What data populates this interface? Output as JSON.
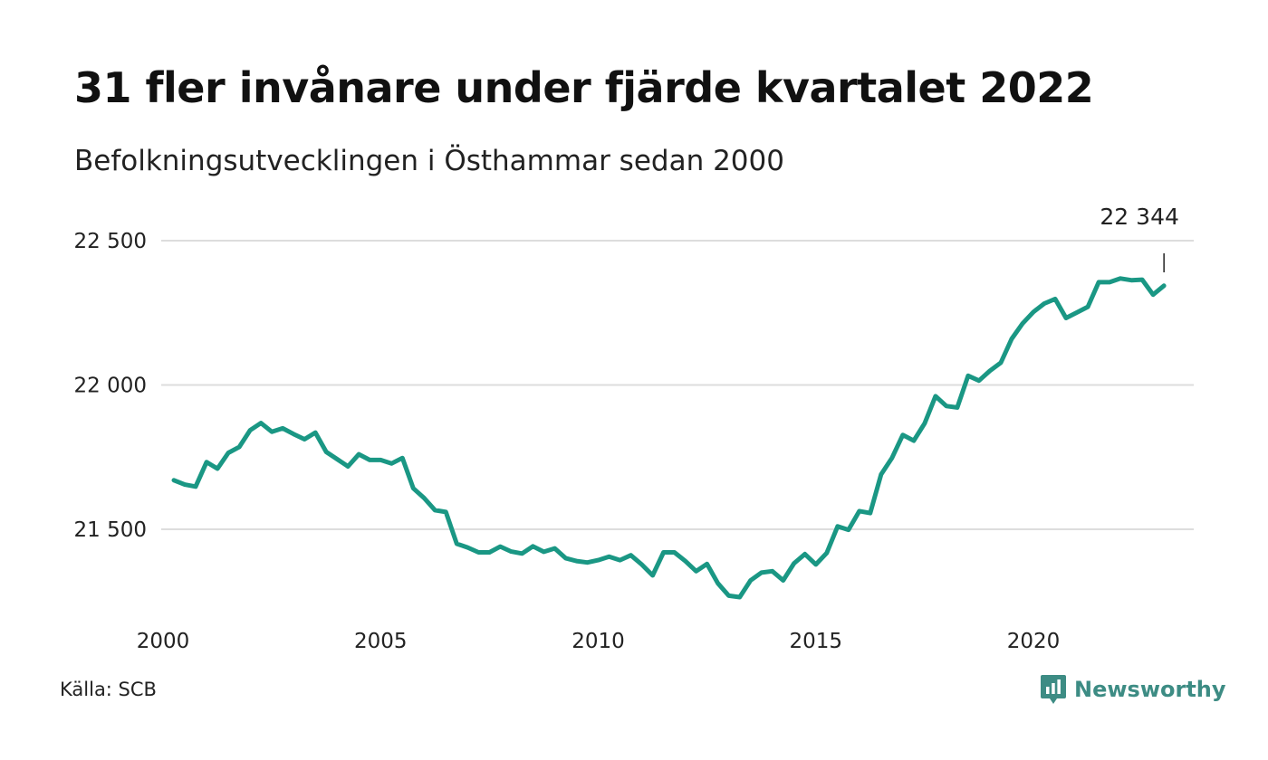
{
  "title": "31 fler invånare under fjärde kvartalet 2022",
  "subtitle": "Befolkningsutvecklingen i Östhammar sedan 2000",
  "source": "Källa: SCB",
  "brand": "Newsworthy",
  "colors": {
    "line": "#1a9784",
    "grid": "#dddddd",
    "brand": "#3d8c84"
  },
  "chart_data": {
    "type": "line",
    "title": "31 fler invånare under fjärde kvartalet 2022",
    "subtitle": "Befolkningsutvecklingen i Östhammar sedan 2000",
    "xlabel": "",
    "ylabel": "",
    "xlim": [
      2000,
      2023.5
    ],
    "ylim": [
      21250,
      22500
    ],
    "grid": true,
    "x_ticks": [
      2000,
      2005,
      2010,
      2015,
      2020
    ],
    "y_ticks": [
      21500,
      22000,
      22500
    ],
    "y_tick_labels": [
      "21 500",
      "22 000",
      "22 500"
    ],
    "end_label": "22 344",
    "x": [
      2000.25,
      2000.5,
      2000.75,
      2001.0,
      2001.25,
      2001.5,
      2001.75,
      2002.0,
      2002.25,
      2002.5,
      2002.75,
      2003.0,
      2003.25,
      2003.5,
      2003.75,
      2004.0,
      2004.25,
      2004.5,
      2004.75,
      2005.0,
      2005.25,
      2005.5,
      2005.75,
      2006.0,
      2006.25,
      2006.5,
      2006.75,
      2007.0,
      2007.25,
      2007.5,
      2007.75,
      2008.0,
      2008.25,
      2008.5,
      2008.75,
      2009.0,
      2009.25,
      2009.5,
      2009.75,
      2010.0,
      2010.25,
      2010.5,
      2010.75,
      2011.0,
      2011.25,
      2011.5,
      2011.75,
      2012.0,
      2012.25,
      2012.5,
      2012.75,
      2013.0,
      2013.25,
      2013.5,
      2013.75,
      2014.0,
      2014.25,
      2014.5,
      2014.75,
      2015.0,
      2015.25,
      2015.5,
      2015.75,
      2016.0,
      2016.25,
      2016.5,
      2016.75,
      2017.0,
      2017.25,
      2017.5,
      2017.75,
      2018.0,
      2018.25,
      2018.5,
      2018.75,
      2019.0,
      2019.25,
      2019.5,
      2019.75,
      2020.0,
      2020.25,
      2020.5,
      2020.75,
      2021.0,
      2021.25,
      2021.5,
      2021.75,
      2022.0,
      2022.25,
      2022.5,
      2022.75,
      2023.0
    ],
    "values": [
      21670,
      21655,
      21648,
      21733,
      21710,
      21765,
      21785,
      21843,
      21868,
      21838,
      21850,
      21830,
      21812,
      21835,
      21768,
      21743,
      21718,
      21760,
      21740,
      21740,
      21728,
      21747,
      21642,
      21608,
      21566,
      21560,
      21450,
      21437,
      21420,
      21420,
      21440,
      21423,
      21416,
      21441,
      21422,
      21434,
      21400,
      21390,
      21385,
      21393,
      21405,
      21393,
      21410,
      21378,
      21340,
      21420,
      21420,
      21390,
      21355,
      21380,
      21313,
      21270,
      21265,
      21323,
      21350,
      21355,
      21323,
      21382,
      21414,
      21378,
      21418,
      21510,
      21498,
      21563,
      21556,
      21690,
      21747,
      21827,
      21807,
      21867,
      21961,
      21927,
      21922,
      22032,
      22015,
      22049,
      22077,
      22160,
      22213,
      22253,
      22282,
      22298,
      22232,
      22251,
      22271,
      22356,
      22356,
      22369,
      22363,
      22365,
      22313,
      22344
    ]
  }
}
